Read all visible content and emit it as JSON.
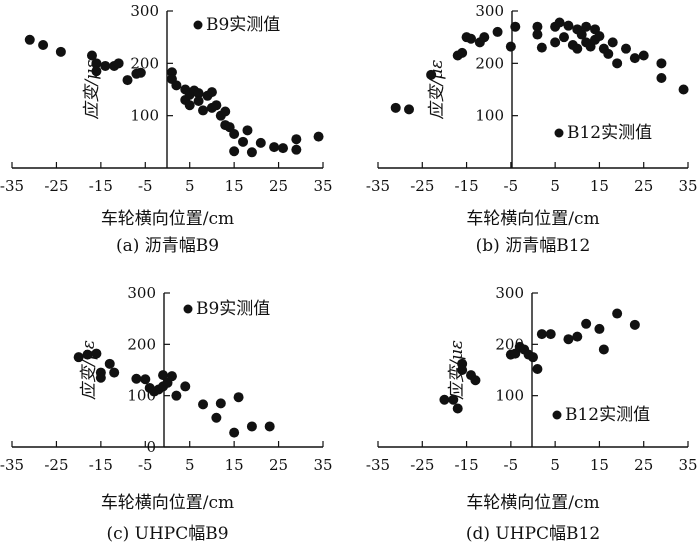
{
  "chart_data": [
    {
      "type": "scatter",
      "panel": "a",
      "caption": "(a) 沥青幅B9",
      "xlabel": "车轮横向位置/cm",
      "ylabel": "应变/με",
      "xlim": [
        -35,
        35
      ],
      "ylim": [
        0,
        300
      ],
      "xticks": [
        "-35",
        "-25",
        "-15",
        "-5",
        "5",
        "15",
        "25",
        "35"
      ],
      "yticks": [
        "100",
        "200",
        "300"
      ],
      "legend": "B9实测值",
      "legend_position": "top-center",
      "series": [
        {
          "name": "B9实测值",
          "points": [
            [
              -31,
              245
            ],
            [
              -28,
              235
            ],
            [
              -24,
              222
            ],
            [
              -17,
              215
            ],
            [
              -16,
              200
            ],
            [
              -16,
              185
            ],
            [
              -14,
              195
            ],
            [
              -12,
              195
            ],
            [
              -11,
              200
            ],
            [
              -9,
              168
            ],
            [
              -7,
              180
            ],
            [
              -6,
              182
            ],
            [
              1,
              183
            ],
            [
              1,
              170
            ],
            [
              2,
              158
            ],
            [
              4,
              150
            ],
            [
              4,
              130
            ],
            [
              5,
              140
            ],
            [
              5,
              120
            ],
            [
              6,
              148
            ],
            [
              7,
              143
            ],
            [
              7,
              128
            ],
            [
              8,
              110
            ],
            [
              9,
              138
            ],
            [
              10,
              115
            ],
            [
              10,
              145
            ],
            [
              11,
              120
            ],
            [
              12,
              100
            ],
            [
              13,
              108
            ],
            [
              13,
              82
            ],
            [
              14,
              78
            ],
            [
              15,
              65
            ],
            [
              15,
              32
            ],
            [
              17,
              50
            ],
            [
              18,
              72
            ],
            [
              19,
              30
            ],
            [
              21,
              48
            ],
            [
              24,
              40
            ],
            [
              26,
              38
            ],
            [
              29,
              35
            ],
            [
              29,
              55
            ],
            [
              34,
              60
            ]
          ]
        }
      ]
    },
    {
      "type": "scatter",
      "panel": "b",
      "caption": "(b) 沥青幅B12",
      "xlabel": "车轮横向位置/cm",
      "ylabel": "应变/με",
      "xlim": [
        -35,
        35
      ],
      "ylim": [
        0,
        300
      ],
      "xticks": [
        "-35",
        "-25",
        "-15",
        "-5",
        "5",
        "15",
        "25",
        "35"
      ],
      "yticks": [
        "100",
        "200",
        "300"
      ],
      "legend": "B12实测值",
      "legend_position": "bottom-center",
      "series": [
        {
          "name": "B12实测值",
          "points": [
            [
              -31,
              115
            ],
            [
              -28,
              112
            ],
            [
              -23,
              178
            ],
            [
              -17,
              215
            ],
            [
              -16,
              220
            ],
            [
              -15,
              250
            ],
            [
              -14,
              247
            ],
            [
              -12,
              240
            ],
            [
              -11,
              250
            ],
            [
              -8,
              260
            ],
            [
              -5,
              232
            ],
            [
              -4,
              270
            ],
            [
              1,
              270
            ],
            [
              1,
              255
            ],
            [
              2,
              230
            ],
            [
              5,
              240
            ],
            [
              5,
              270
            ],
            [
              6,
              278
            ],
            [
              7,
              250
            ],
            [
              8,
              272
            ],
            [
              9,
              235
            ],
            [
              10,
              265
            ],
            [
              10,
              228
            ],
            [
              11,
              255
            ],
            [
              12,
              240
            ],
            [
              12,
              270
            ],
            [
              13,
              232
            ],
            [
              14,
              265
            ],
            [
              14,
              245
            ],
            [
              15,
              252
            ],
            [
              16,
              228
            ],
            [
              17,
              218
            ],
            [
              18,
              240
            ],
            [
              19,
              200
            ],
            [
              21,
              228
            ],
            [
              23,
              210
            ],
            [
              25,
              215
            ],
            [
              29,
              200
            ],
            [
              29,
              172
            ],
            [
              34,
              150
            ]
          ]
        }
      ]
    },
    {
      "type": "scatter",
      "panel": "c",
      "caption": "(c) UHPC幅B9",
      "xlabel": "车轮横向位置/cm",
      "ylabel": "应变/με",
      "xlim": [
        -35,
        35
      ],
      "ylim": [
        0,
        300
      ],
      "xticks": [
        "-35",
        "-25",
        "-15",
        "-5",
        "5",
        "15",
        "25",
        "35"
      ],
      "yticks": [
        "0",
        "100",
        "200",
        "300"
      ],
      "legend": "B9实测值",
      "legend_position": "top-center",
      "series": [
        {
          "name": "B9实测值",
          "points": [
            [
              -20,
              175
            ],
            [
              -18,
              180
            ],
            [
              -16,
              182
            ],
            [
              -15,
              145
            ],
            [
              -15,
              135
            ],
            [
              -13,
              162
            ],
            [
              -12,
              145
            ],
            [
              -7,
              133
            ],
            [
              -5,
              132
            ],
            [
              -4,
              115
            ],
            [
              -3,
              108
            ],
            [
              -2,
              112
            ],
            [
              -1,
              118
            ],
            [
              -1,
              140
            ],
            [
              0,
              125
            ],
            [
              1,
              138
            ],
            [
              2,
              100
            ],
            [
              4,
              118
            ],
            [
              8,
              83
            ],
            [
              11,
              57
            ],
            [
              12,
              85
            ],
            [
              15,
              28
            ],
            [
              16,
              97
            ],
            [
              19,
              40
            ],
            [
              23,
              40
            ]
          ]
        }
      ]
    },
    {
      "type": "scatter",
      "panel": "d",
      "caption": "(d) UHPC幅B12",
      "xlabel": "车轮横向位置/cm",
      "ylabel": "应变/με",
      "xlim": [
        -35,
        35
      ],
      "ylim": [
        0,
        300
      ],
      "xticks": [
        "-35",
        "-25",
        "-15",
        "-5",
        "5",
        "15",
        "25",
        "35"
      ],
      "yticks": [
        "100",
        "200",
        "300"
      ],
      "legend": "B12实测值",
      "legend_position": "bottom-center",
      "series": [
        {
          "name": "B12实测值",
          "points": [
            [
              -20,
              92
            ],
            [
              -18,
              92
            ],
            [
              -17,
              75
            ],
            [
              -16,
              162
            ],
            [
              -16,
              150
            ],
            [
              -14,
              140
            ],
            [
              -13,
              130
            ],
            [
              -5,
              180
            ],
            [
              -4,
              182
            ],
            [
              -3,
              195
            ],
            [
              -2,
              190
            ],
            [
              -1,
              180
            ],
            [
              0,
              175
            ],
            [
              1,
              152
            ],
            [
              2,
              220
            ],
            [
              4,
              220
            ],
            [
              8,
              210
            ],
            [
              10,
              215
            ],
            [
              12,
              240
            ],
            [
              15,
              230
            ],
            [
              16,
              190
            ],
            [
              19,
              260
            ],
            [
              23,
              238
            ]
          ]
        }
      ]
    }
  ]
}
